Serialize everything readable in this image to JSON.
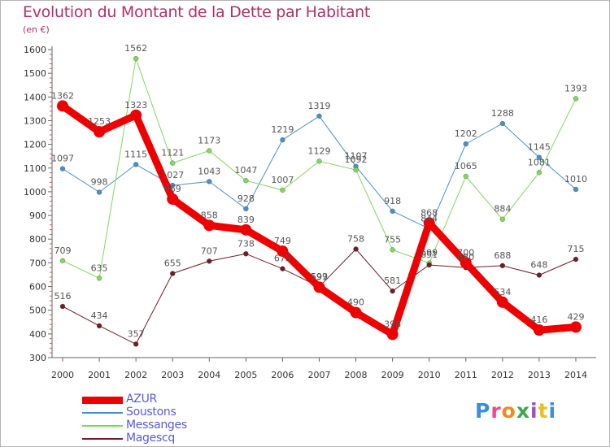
{
  "title": "Evolution du Montant de la Dette par Habitant",
  "unit": "(en €)",
  "logo": {
    "text": "Proxiti",
    "letters": [
      {
        "char": "P",
        "color": "#3a8fd6"
      },
      {
        "char": "r",
        "color": "#e84c8b"
      },
      {
        "char": "o",
        "color": "#f08a1c"
      },
      {
        "char": "x",
        "color": "#3aa845"
      },
      {
        "char": "i",
        "color": "#9b4fc4"
      },
      {
        "char": "t",
        "color": "#e8c21c"
      },
      {
        "char": "i",
        "color": "#3a8fd6"
      }
    ]
  },
  "chart_data": {
    "type": "line",
    "title": "Evolution du Montant de la Dette par Habitant",
    "subtitle": "(en €)",
    "xlabel": "",
    "ylabel": "",
    "x": [
      "2000",
      "2001",
      "2002",
      "2003",
      "2004",
      "2005",
      "2006",
      "2007",
      "2008",
      "2009",
      "2010",
      "2011",
      "2012",
      "2013",
      "2014"
    ],
    "ylim": [
      300,
      1600
    ],
    "yticks": [
      300,
      400,
      500,
      600,
      700,
      800,
      900,
      1000,
      1100,
      1200,
      1300,
      1400,
      1500,
      1600
    ],
    "grid": false,
    "legend": "bottom-left",
    "series": [
      {
        "name": "AZUR",
        "color": "#ee0000",
        "width": 9,
        "values": [
          1362,
          1253,
          1323,
          969,
          858,
          839,
          749,
          597,
          490,
          398,
          868,
          700,
          534,
          416,
          429
        ],
        "labels": [
          "1362",
          "1253",
          "1323",
          "969",
          "858",
          "839",
          "749",
          "597",
          "490",
          "398",
          "868",
          "700",
          "534",
          "416",
          "429"
        ]
      },
      {
        "name": "Soustons",
        "color": "#4a90c8",
        "width": 1,
        "values": [
          1097,
          998,
          1115,
          1027,
          1043,
          928,
          1219,
          1319,
          1107,
          918,
          844,
          1202,
          1288,
          1145,
          1010
        ],
        "labels": [
          "1097",
          "998",
          "1115",
          "1027",
          "1043",
          "928",
          "1219",
          "1319",
          "1107",
          "918",
          "844",
          "1202",
          "1288",
          "1145",
          "1010"
        ]
      },
      {
        "name": "Messanges",
        "color": "#7fd85a",
        "width": 1,
        "values": [
          709,
          635,
          1562,
          1121,
          1173,
          1047,
          1007,
          1129,
          1092,
          755,
          699,
          1065,
          884,
          1081,
          1393
        ],
        "labels": [
          "709",
          "635",
          "1562",
          "1121",
          "1173",
          "1047",
          "1007",
          "1129",
          "1092",
          "755",
          "699",
          "1065",
          "884",
          "1081",
          "1393"
        ]
      },
      {
        "name": "Magescq",
        "color": "#6e1e24",
        "width": 1,
        "values": [
          516,
          434,
          357,
          655,
          707,
          738,
          675,
          599,
          758,
          581,
          691,
          680,
          688,
          648,
          715
        ],
        "labels": [
          "516",
          "434",
          "357",
          "655",
          "707",
          "738",
          "675",
          "599",
          "758",
          "581",
          "691",
          "680",
          "688",
          "648",
          "715"
        ]
      }
    ]
  }
}
